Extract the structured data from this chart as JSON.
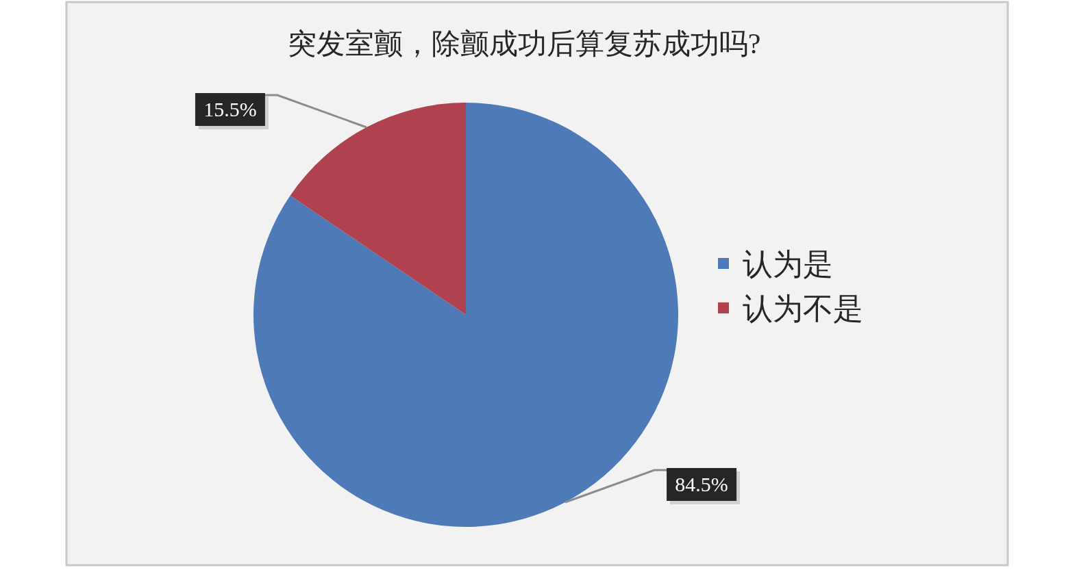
{
  "chart_data": {
    "type": "pie",
    "title": "突发室颤，除颤成功后算复苏成功吗?",
    "categories": [
      "认为是",
      "认为不是"
    ],
    "values": [
      84.5,
      15.5
    ],
    "colors": [
      "#4f7ab8",
      "#b0424f"
    ],
    "value_labels": [
      "84.5%",
      "15.5%"
    ],
    "legend": "right"
  }
}
